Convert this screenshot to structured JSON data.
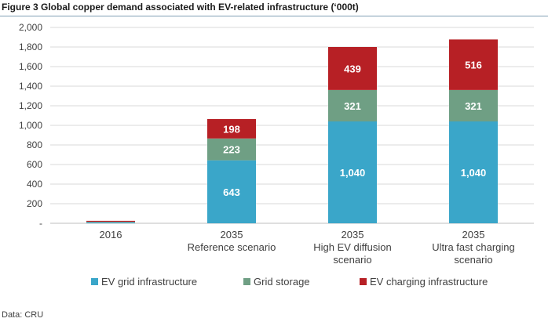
{
  "figure": {
    "title": "Figure 3  Global copper demand associated with EV-related infrastructure (‘000t)",
    "source": "Data: CRU"
  },
  "chart_data": {
    "type": "bar",
    "stacked": true,
    "categories": [
      [
        "2016"
      ],
      [
        "2035",
        "Reference scenario"
      ],
      [
        "2035",
        "High EV diffusion",
        "scenario"
      ],
      [
        "2035",
        "Ultra fast charging",
        "scenario"
      ]
    ],
    "series": [
      {
        "name": "EV grid infrastructure",
        "color": "#3aa6c9",
        "values": [
          10,
          643,
          1040,
          1040
        ],
        "labels": [
          "",
          "643",
          "1,040",
          "1,040"
        ]
      },
      {
        "name": "Grid storage",
        "color": "#6f9f84",
        "values": [
          5,
          223,
          321,
          321
        ],
        "labels": [
          "",
          "223",
          "321",
          "321"
        ]
      },
      {
        "name": "EV charging infrastructure",
        "color": "#b72025",
        "values": [
          10,
          198,
          439,
          516
        ],
        "labels": [
          "",
          "198",
          "439",
          "516"
        ]
      }
    ],
    "ylim": [
      0,
      2000
    ],
    "yticks": [
      0,
      200,
      400,
      600,
      800,
      1000,
      1200,
      1400,
      1600,
      1800,
      2000
    ],
    "ytick_labels": [
      "-",
      "200",
      "400",
      "600",
      "800",
      "1,000",
      "1,200",
      "1,400",
      "1,600",
      "1,800",
      "2,000"
    ],
    "grid": true,
    "legend": "bottom"
  }
}
